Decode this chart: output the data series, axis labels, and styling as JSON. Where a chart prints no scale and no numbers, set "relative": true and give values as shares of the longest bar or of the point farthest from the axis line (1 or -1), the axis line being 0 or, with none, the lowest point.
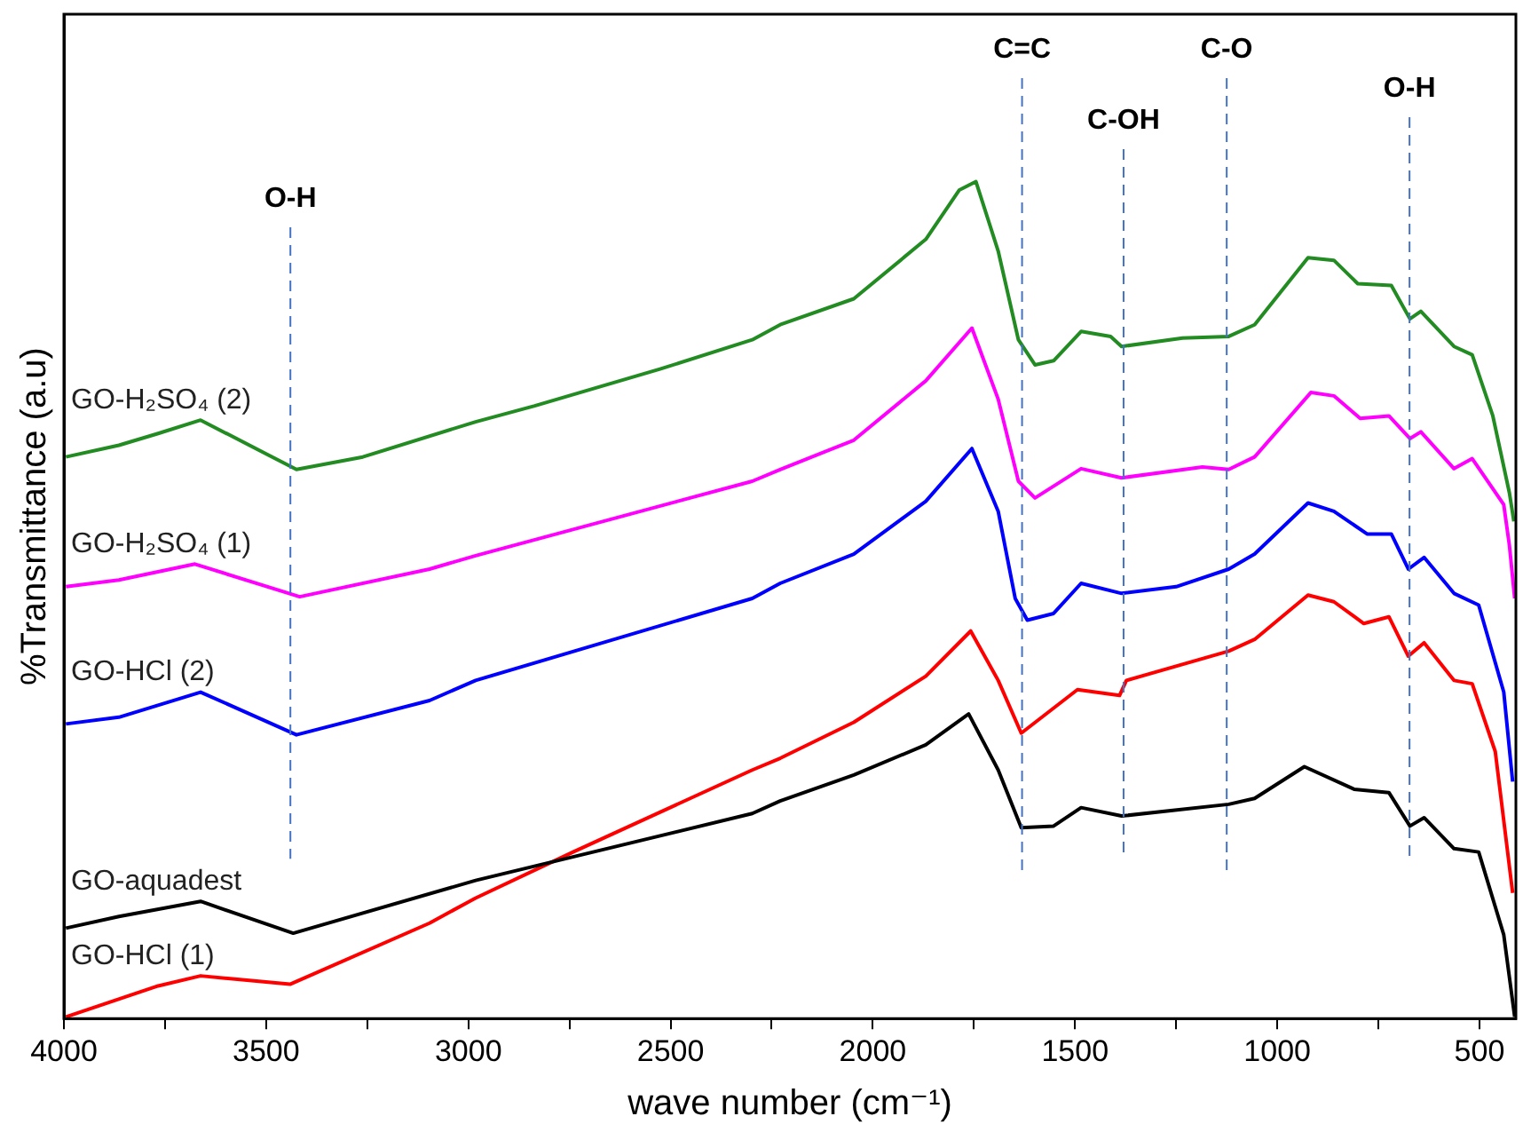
{
  "chart_data": {
    "type": "line",
    "xlabel": "wave number (cm⁻¹)",
    "ylabel": "%Transmittance (a.u)",
    "relative": true,
    "legend": false,
    "grid": false,
    "marker": "none",
    "line_style": "solid",
    "xlim": [
      4000,
      410
    ],
    "xticks": [
      4000,
      {
        "value": 3750,
        "label": null
      },
      3500,
      {
        "value": 3250,
        "label": null
      },
      3000,
      {
        "value": 2750,
        "label": null
      },
      2500,
      {
        "value": 2250,
        "label": null
      },
      2000,
      {
        "value": 1750,
        "label": null
      },
      1500,
      {
        "value": 1250,
        "label": null
      },
      1000,
      {
        "value": 750,
        "label": null
      },
      500
    ],
    "series": [
      {
        "name": "GO-H₂SO₄ (2)",
        "color": "#228b22",
        "x": [
          3995,
          3864,
          3767,
          3662,
          3425,
          3261,
          2982,
          2836,
          2526,
          2298,
          2229,
          2047,
          1869,
          1786,
          1745,
          1690,
          1640,
          1599,
          1553,
          1485,
          1412,
          1385,
          1234,
          1120,
          1056,
          924,
          860,
          801,
          718,
          672,
          645,
          563,
          518,
          467,
          426,
          415
        ],
        "values": [
          0.671,
          0.685,
          0.699,
          0.715,
          0.656,
          0.671,
          0.713,
          0.732,
          0.776,
          0.811,
          0.829,
          0.86,
          0.931,
          0.99,
          1.0,
          0.917,
          0.811,
          0.781,
          0.786,
          0.821,
          0.815,
          0.803,
          0.813,
          0.815,
          0.829,
          0.909,
          0.906,
          0.878,
          0.876,
          0.836,
          0.845,
          0.803,
          0.793,
          0.72,
          0.628,
          0.594
        ]
      },
      {
        "name": "GO-H₂SO₄ (1)",
        "color": "#ff00ff",
        "x": [
          3995,
          3864,
          3676,
          3417,
          3096,
          2982,
          2298,
          2229,
          2047,
          1869,
          1755,
          1690,
          1640,
          1599,
          1485,
          1385,
          1185,
          1120,
          1056,
          917,
          860,
          795,
          724,
          672,
          645,
          563,
          518,
          440,
          426,
          413
        ],
        "values": [
          0.516,
          0.524,
          0.543,
          0.504,
          0.537,
          0.553,
          0.642,
          0.656,
          0.691,
          0.762,
          0.825,
          0.74,
          0.642,
          0.622,
          0.657,
          0.646,
          0.659,
          0.656,
          0.671,
          0.748,
          0.744,
          0.717,
          0.72,
          0.693,
          0.701,
          0.657,
          0.669,
          0.614,
          0.565,
          0.502
        ]
      },
      {
        "name": "GO-HCl (2)",
        "color": "#0000ff",
        "x": [
          3995,
          3864,
          3662,
          3425,
          3096,
          2982,
          2298,
          2229,
          2047,
          1869,
          1755,
          1690,
          1648,
          1618,
          1553,
          1485,
          1385,
          1250,
          1120,
          1056,
          924,
          860,
          778,
          718,
          676,
          637,
          563,
          502,
          440,
          418
        ],
        "values": [
          0.352,
          0.36,
          0.39,
          0.339,
          0.38,
          0.404,
          0.502,
          0.52,
          0.555,
          0.618,
          0.681,
          0.606,
          0.502,
          0.476,
          0.484,
          0.52,
          0.508,
          0.516,
          0.537,
          0.555,
          0.616,
          0.606,
          0.579,
          0.579,
          0.537,
          0.551,
          0.508,
          0.494,
          0.39,
          0.283
        ]
      },
      {
        "name": "GO-aquadest",
        "color": "#000000",
        "x": [
          3995,
          3864,
          3662,
          3433,
          2982,
          2298,
          2229,
          2047,
          1869,
          1763,
          1690,
          1633,
          1553,
          1485,
          1385,
          1120,
          1056,
          933,
          810,
          724,
          672,
          637,
          563,
          502,
          440,
          413
        ],
        "values": [
          0.108,
          0.122,
          0.14,
          0.102,
          0.165,
          0.245,
          0.26,
          0.291,
          0.327,
          0.364,
          0.297,
          0.228,
          0.23,
          0.252,
          0.242,
          0.256,
          0.263,
          0.301,
          0.274,
          0.27,
          0.23,
          0.24,
          0.203,
          0.199,
          0.1,
          0.002
        ]
      },
      {
        "name": "GO-HCl (1)",
        "color": "#ff0000",
        "x": [
          3995,
          3767,
          3662,
          3441,
          3096,
          2982,
          2741,
          2298,
          2229,
          2047,
          1869,
          1758,
          1690,
          1633,
          1494,
          1390,
          1373,
          1120,
          1056,
          924,
          860,
          786,
          724,
          676,
          637,
          563,
          518,
          461,
          418
        ],
        "values": [
          0.002,
          0.039,
          0.051,
          0.041,
          0.114,
          0.144,
          0.199,
          0.297,
          0.311,
          0.354,
          0.409,
          0.463,
          0.404,
          0.341,
          0.393,
          0.386,
          0.404,
          0.439,
          0.453,
          0.506,
          0.498,
          0.472,
          0.48,
          0.433,
          0.449,
          0.404,
          0.4,
          0.319,
          0.15
        ]
      }
    ],
    "ref_lines": [
      {
        "axis": "x",
        "value": 3440,
        "label": "O-H",
        "color": "#4472c4",
        "line_style": "dashed"
      },
      {
        "axis": "x",
        "value": 1631,
        "label": "C=C",
        "color": "#4472c4",
        "line_style": "dashed"
      },
      {
        "axis": "x",
        "value": 1380,
        "label": "C-OH",
        "color": "#4472c4",
        "line_style": "dashed"
      },
      {
        "axis": "x",
        "value": 1125,
        "label": "C-O",
        "color": "#4472c4",
        "line_style": "dashed"
      },
      {
        "axis": "x",
        "value": 673,
        "label": "O-H",
        "color": "#4472c4",
        "line_style": "dashed"
      }
    ]
  }
}
